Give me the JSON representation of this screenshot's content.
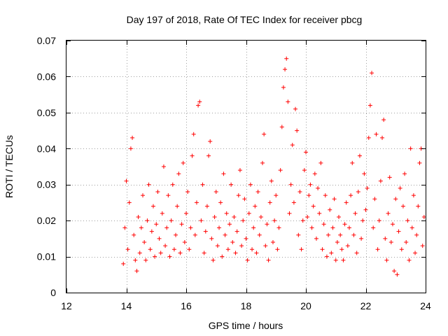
{
  "chart_data": {
    "type": "scatter",
    "title": "Day 197 of 2018, Rate Of TEC Index for receiver pbcg",
    "xlabel": "GPS time / hours",
    "ylabel": "ROTI / TECUs",
    "xlim": [
      12,
      24
    ],
    "ylim": [
      0,
      0.07
    ],
    "xticks": [
      "12",
      "14",
      "16",
      "18",
      "20",
      "22",
      "24"
    ],
    "yticks": [
      "0",
      "0.01",
      "0.02",
      "0.03",
      "0.04",
      "0.05",
      "0.06",
      "0.07"
    ],
    "grid": true,
    "marker": "+",
    "color": "#ff0000",
    "series": [
      {
        "points": [
          [
            13.9,
            0.008
          ],
          [
            13.95,
            0.018
          ],
          [
            14.0,
            0.031
          ],
          [
            14.05,
            0.012
          ],
          [
            14.1,
            0.025
          ],
          [
            14.15,
            0.04
          ],
          [
            14.2,
            0.043
          ],
          [
            14.25,
            0.016
          ],
          [
            14.3,
            0.009
          ],
          [
            14.35,
            0.006
          ],
          [
            14.4,
            0.021
          ],
          [
            14.45,
            0.011
          ],
          [
            14.5,
            0.018
          ],
          [
            14.55,
            0.027
          ],
          [
            14.6,
            0.014
          ],
          [
            14.65,
            0.009
          ],
          [
            14.7,
            0.02
          ],
          [
            14.75,
            0.03
          ],
          [
            14.8,
            0.012
          ],
          [
            14.85,
            0.017
          ],
          [
            14.9,
            0.024
          ],
          [
            14.95,
            0.01
          ],
          [
            15.0,
            0.019
          ],
          [
            15.05,
            0.028
          ],
          [
            15.1,
            0.015
          ],
          [
            15.15,
            0.011
          ],
          [
            15.2,
            0.022
          ],
          [
            15.25,
            0.035
          ],
          [
            15.3,
            0.013
          ],
          [
            15.35,
            0.018
          ],
          [
            15.4,
            0.027
          ],
          [
            15.45,
            0.01
          ],
          [
            15.5,
            0.02
          ],
          [
            15.55,
            0.03
          ],
          [
            15.6,
            0.012
          ],
          [
            15.65,
            0.016
          ],
          [
            15.7,
            0.024
          ],
          [
            15.75,
            0.033
          ],
          [
            15.8,
            0.011
          ],
          [
            15.85,
            0.019
          ],
          [
            15.9,
            0.036
          ],
          [
            15.95,
            0.014
          ],
          [
            16.0,
            0.022
          ],
          [
            16.05,
            0.028
          ],
          [
            16.1,
            0.012
          ],
          [
            16.15,
            0.018
          ],
          [
            16.2,
            0.038
          ],
          [
            16.25,
            0.044
          ],
          [
            16.3,
            0.016
          ],
          [
            16.35,
            0.025
          ],
          [
            16.4,
            0.052
          ],
          [
            16.45,
            0.053
          ],
          [
            16.5,
            0.02
          ],
          [
            16.55,
            0.03
          ],
          [
            16.6,
            0.011
          ],
          [
            16.65,
            0.017
          ],
          [
            16.7,
            0.024
          ],
          [
            16.75,
            0.038
          ],
          [
            16.8,
            0.042
          ],
          [
            16.85,
            0.015
          ],
          [
            16.9,
            0.009
          ],
          [
            16.95,
            0.021
          ],
          [
            17.0,
            0.028
          ],
          [
            17.05,
            0.013
          ],
          [
            17.1,
            0.018
          ],
          [
            17.15,
            0.025
          ],
          [
            17.2,
            0.01
          ],
          [
            17.25,
            0.033
          ],
          [
            17.3,
            0.016
          ],
          [
            17.35,
            0.022
          ],
          [
            17.4,
            0.012
          ],
          [
            17.45,
            0.019
          ],
          [
            17.5,
            0.03
          ],
          [
            17.55,
            0.014
          ],
          [
            17.6,
            0.021
          ],
          [
            17.65,
            0.011
          ],
          [
            17.7,
            0.017
          ],
          [
            17.75,
            0.027
          ],
          [
            17.8,
            0.034
          ],
          [
            17.85,
            0.013
          ],
          [
            17.9,
            0.02
          ],
          [
            17.95,
            0.026
          ],
          [
            18.0,
            0.015
          ],
          [
            18.05,
            0.009
          ],
          [
            18.1,
            0.022
          ],
          [
            18.15,
            0.03
          ],
          [
            18.2,
            0.012
          ],
          [
            18.25,
            0.018
          ],
          [
            18.3,
            0.024
          ],
          [
            18.35,
            0.011
          ],
          [
            18.4,
            0.028
          ],
          [
            18.45,
            0.016
          ],
          [
            18.5,
            0.021
          ],
          [
            18.55,
            0.036
          ],
          [
            18.6,
            0.044
          ],
          [
            18.65,
            0.013
          ],
          [
            18.7,
            0.019
          ],
          [
            18.75,
            0.009
          ],
          [
            18.8,
            0.025
          ],
          [
            18.85,
            0.031
          ],
          [
            18.9,
            0.014
          ],
          [
            18.95,
            0.02
          ],
          [
            19.0,
            0.027
          ],
          [
            19.05,
            0.012
          ],
          [
            19.1,
            0.018
          ],
          [
            19.15,
            0.034
          ],
          [
            19.2,
            0.046
          ],
          [
            19.25,
            0.057
          ],
          [
            19.3,
            0.062
          ],
          [
            19.35,
            0.065
          ],
          [
            19.4,
            0.053
          ],
          [
            19.45,
            0.022
          ],
          [
            19.5,
            0.03
          ],
          [
            19.55,
            0.041
          ],
          [
            19.6,
            0.025
          ],
          [
            19.65,
            0.051
          ],
          [
            19.7,
            0.045
          ],
          [
            19.75,
            0.016
          ],
          [
            19.8,
            0.028
          ],
          [
            19.85,
            0.012
          ],
          [
            19.9,
            0.02
          ],
          [
            19.95,
            0.034
          ],
          [
            20.0,
            0.039
          ],
          [
            20.05,
            0.021
          ],
          [
            20.1,
            0.027
          ],
          [
            20.15,
            0.03
          ],
          [
            20.2,
            0.018
          ],
          [
            20.25,
            0.024
          ],
          [
            20.3,
            0.033
          ],
          [
            20.35,
            0.015
          ],
          [
            20.4,
            0.029
          ],
          [
            20.45,
            0.022
          ],
          [
            20.5,
            0.036
          ],
          [
            20.55,
            0.012
          ],
          [
            20.6,
            0.019
          ],
          [
            20.65,
            0.027
          ],
          [
            20.7,
            0.01
          ],
          [
            20.75,
            0.016
          ],
          [
            20.8,
            0.023
          ],
          [
            20.85,
            0.011
          ],
          [
            20.9,
            0.018
          ],
          [
            20.95,
            0.026
          ],
          [
            21.0,
            0.009
          ],
          [
            21.05,
            0.014
          ],
          [
            21.1,
            0.021
          ],
          [
            21.15,
            0.016
          ],
          [
            21.2,
            0.012
          ],
          [
            21.25,
            0.009
          ],
          [
            21.3,
            0.019
          ],
          [
            21.35,
            0.025
          ],
          [
            21.4,
            0.013
          ],
          [
            21.45,
            0.018
          ],
          [
            21.5,
            0.027
          ],
          [
            21.55,
            0.036
          ],
          [
            21.6,
            0.016
          ],
          [
            21.65,
            0.022
          ],
          [
            21.7,
            0.011
          ],
          [
            21.75,
            0.028
          ],
          [
            21.8,
            0.038
          ],
          [
            21.85,
            0.015
          ],
          [
            21.9,
            0.02
          ],
          [
            21.95,
            0.033
          ],
          [
            22.0,
            0.023
          ],
          [
            22.05,
            0.029
          ],
          [
            22.1,
            0.043
          ],
          [
            22.15,
            0.052
          ],
          [
            22.2,
            0.061
          ],
          [
            22.25,
            0.018
          ],
          [
            22.3,
            0.026
          ],
          [
            22.35,
            0.044
          ],
          [
            22.4,
            0.012
          ],
          [
            22.45,
            0.02
          ],
          [
            22.5,
            0.031
          ],
          [
            22.55,
            0.043
          ],
          [
            22.6,
            0.048
          ],
          [
            22.65,
            0.015
          ],
          [
            22.7,
            0.009
          ],
          [
            22.75,
            0.022
          ],
          [
            22.8,
            0.032
          ],
          [
            22.85,
            0.014
          ],
          [
            22.9,
            0.019
          ],
          [
            22.95,
            0.006
          ],
          [
            23.0,
            0.026
          ],
          [
            23.05,
            0.005
          ],
          [
            23.1,
            0.017
          ],
          [
            23.15,
            0.029
          ],
          [
            23.2,
            0.012
          ],
          [
            23.25,
            0.024
          ],
          [
            23.3,
            0.033
          ],
          [
            23.35,
            0.014
          ],
          [
            23.4,
            0.02
          ],
          [
            23.45,
            0.009
          ],
          [
            23.5,
            0.04
          ],
          [
            23.55,
            0.018
          ],
          [
            23.6,
            0.027
          ],
          [
            23.65,
            0.011
          ],
          [
            23.7,
            0.016
          ],
          [
            23.75,
            0.024
          ],
          [
            23.8,
            0.036
          ],
          [
            23.85,
            0.04
          ],
          [
            23.9,
            0.013
          ],
          [
            23.95,
            0.021
          ]
        ]
      }
    ]
  }
}
